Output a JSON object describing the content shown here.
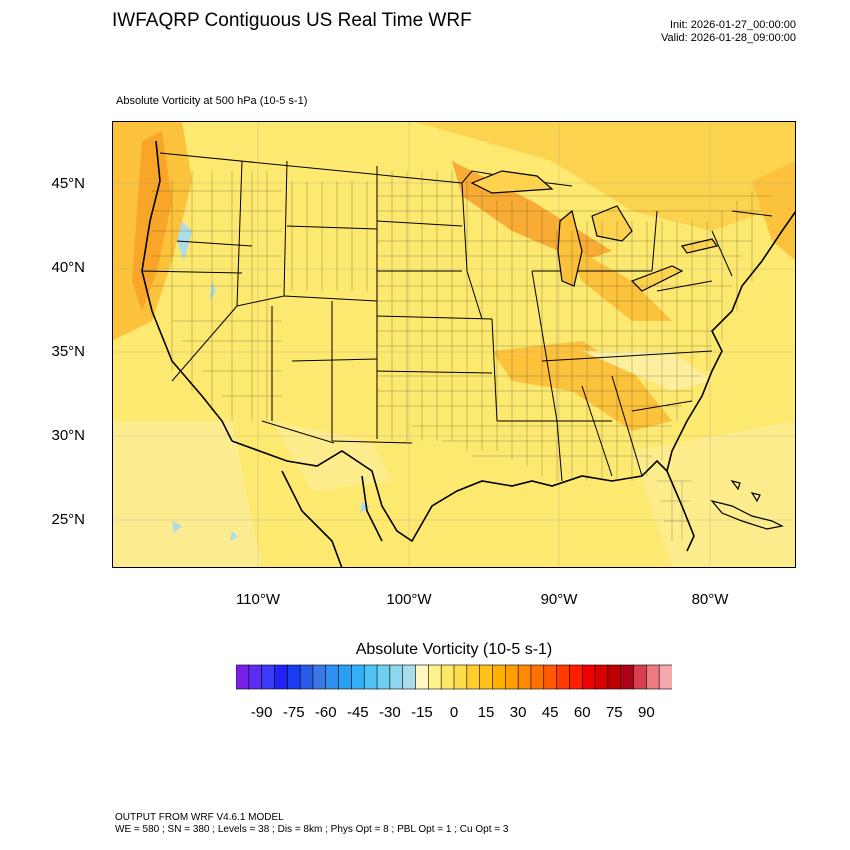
{
  "header": {
    "title": "IWFAQRP Contiguous US Real Time WRF",
    "init": "Init: 2026-01-27_00:00:00",
    "valid": "Valid: 2026-01-28_09:00:00",
    "field_label": "Absolute Vorticity at 500 hPa   (10-5 s-1)"
  },
  "map": {
    "lat_labels": [
      "45°N",
      "40°N",
      "35°N",
      "30°N",
      "25°N"
    ],
    "lon_labels": [
      "110°W",
      "100°W",
      "90°W",
      "80°W"
    ],
    "colors": {
      "background": "#fde870",
      "land_light": "#fef0a0",
      "warm": "#fcc13a",
      "strong": "#f7941d",
      "negative": "#a6d4ec",
      "lines": "#000000"
    }
  },
  "colorbar": {
    "title": "Absolute Vorticity  (10-5 s-1)",
    "labels": [
      "-90",
      "-75",
      "-60",
      "-45",
      "-30",
      "-15",
      "0",
      "15",
      "30",
      "45",
      "60",
      "75",
      "90"
    ],
    "colors": [
      "#7a1fe8",
      "#5b2df0",
      "#3d3bf5",
      "#2222f8",
      "#1a3cf0",
      "#2a5ae8",
      "#3b78e6",
      "#2f8ff2",
      "#2aa0f5",
      "#33b0f8",
      "#4fc2f7",
      "#6fcff0",
      "#8ed8ee",
      "#aadcee",
      "#fff6c0",
      "#fff28c",
      "#ffe866",
      "#ffdc4a",
      "#ffcd2e",
      "#ffc01a",
      "#ffb000",
      "#ff9f00",
      "#ff8a00",
      "#ff7200",
      "#ff5a00",
      "#ff3c00",
      "#ff1e00",
      "#f00000",
      "#d80000",
      "#c00000",
      "#b00018",
      "#d84050",
      "#ee7a80",
      "#f6a8ac"
    ]
  },
  "footer": {
    "line1": "OUTPUT FROM WRF V4.6.1 MODEL",
    "line2": "WE = 580 ; SN = 380 ; Levels = 38 ; Dis = 8km ; Phys Opt = 8 ; PBL Opt = 1 ; Cu Opt = 3"
  }
}
